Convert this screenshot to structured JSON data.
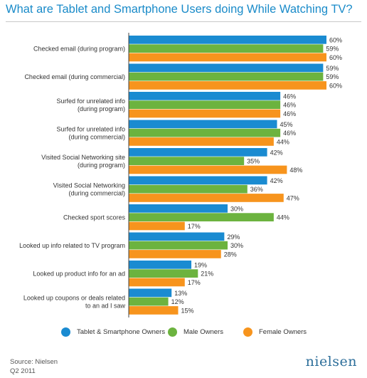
{
  "title": "What are Tablet and Smartphone Users doing While Watching TV?",
  "colors": {
    "series_1": "#1a8bd1",
    "series_2": "#6cb33f",
    "series_3": "#f7941d",
    "title": "#1a8bc9"
  },
  "chart_data": {
    "type": "bar",
    "orientation": "horizontal",
    "title": "What are Tablet and Smartphone Users doing While Watching TV?",
    "categories": [
      [
        "Checked email (during program)"
      ],
      [
        "Checked email (during commercial)"
      ],
      [
        "Surfed for unrelated info",
        "(during program)"
      ],
      [
        "Surfed for unrelated info",
        "(during commercial)"
      ],
      [
        "Visited Social Networking site",
        "(during program)"
      ],
      [
        "Visited Social Networking",
        "(during commercial)"
      ],
      [
        "Checked sport scores"
      ],
      [
        "Looked up info related to TV program"
      ],
      [
        "Looked up product info for an ad"
      ],
      [
        "Looked up coupons or deals related",
        "to an ad I saw"
      ]
    ],
    "series": [
      {
        "name": "Tablet & Smartphone Owners",
        "values": [
          60,
          59,
          46,
          45,
          42,
          42,
          30,
          29,
          19,
          13
        ]
      },
      {
        "name": "Male Owners",
        "values": [
          59,
          59,
          46,
          46,
          35,
          36,
          44,
          30,
          21,
          12
        ]
      },
      {
        "name": "Female Owners",
        "values": [
          60,
          60,
          46,
          44,
          48,
          47,
          17,
          28,
          17,
          15
        ]
      }
    ],
    "value_suffix": "%",
    "xlim": [
      0,
      60
    ],
    "legend": "bottom"
  },
  "source": {
    "line1": "Source: Nielsen",
    "line2": "Q2 2011"
  },
  "logo_text": "nielsen"
}
